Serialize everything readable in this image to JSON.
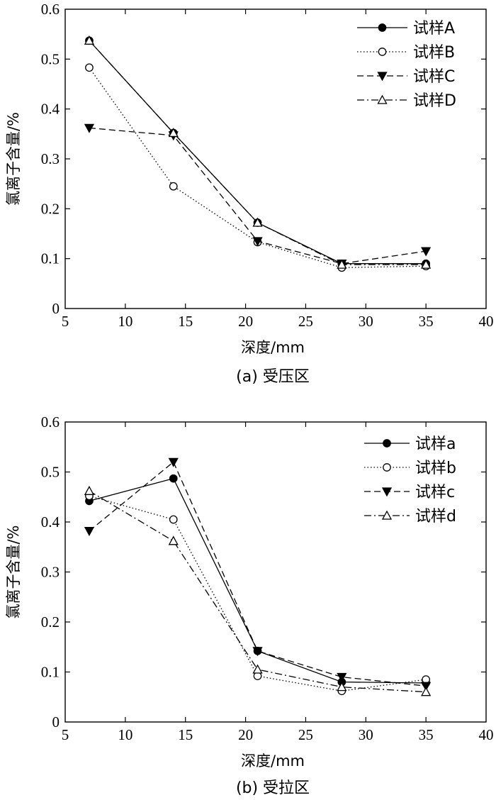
{
  "chart_data": [
    {
      "type": "line",
      "caption": "(a) 受压区",
      "xlabel": "深度/mm",
      "ylabel": "氯离子含量/%",
      "xlim": [
        5,
        40
      ],
      "ylim": [
        0,
        0.6
      ],
      "xticks": [
        5,
        10,
        15,
        20,
        25,
        30,
        35,
        40
      ],
      "yticks": [
        0,
        0.1,
        0.2,
        0.3,
        0.4,
        0.5,
        0.6
      ],
      "x": [
        7,
        14,
        21,
        28,
        35
      ],
      "legend_position": "top-right",
      "series": [
        {
          "name": "试样A",
          "values": [
            0.537,
            0.352,
            0.172,
            0.09,
            0.09
          ],
          "marker": "filled-circle",
          "line": "solid"
        },
        {
          "name": "试样B",
          "values": [
            0.483,
            0.245,
            0.133,
            0.082,
            0.085
          ],
          "marker": "open-circle",
          "line": "dotted"
        },
        {
          "name": "试样C",
          "values": [
            0.362,
            0.347,
            0.135,
            0.09,
            0.115
          ],
          "marker": "filled-triangle-down",
          "line": "dashed"
        },
        {
          "name": "试样D",
          "values": [
            0.537,
            0.352,
            0.172,
            0.088,
            0.088
          ],
          "marker": "open-triangle-up",
          "line": "dashdot"
        }
      ]
    },
    {
      "type": "line",
      "caption": "(b) 受拉区",
      "xlabel": "深度/mm",
      "ylabel": "氯离子含量/%",
      "xlim": [
        5,
        40
      ],
      "ylim": [
        0,
        0.6
      ],
      "xticks": [
        5,
        10,
        15,
        20,
        25,
        30,
        35,
        40
      ],
      "yticks": [
        0,
        0.1,
        0.2,
        0.3,
        0.4,
        0.5,
        0.6
      ],
      "x": [
        7,
        14,
        21,
        28,
        35
      ],
      "legend_position": "top-right",
      "series": [
        {
          "name": "试样a",
          "values": [
            0.442,
            0.487,
            0.142,
            0.08,
            0.078
          ],
          "marker": "filled-circle",
          "line": "solid"
        },
        {
          "name": "试样b",
          "values": [
            0.452,
            0.405,
            0.092,
            0.062,
            0.085
          ],
          "marker": "open-circle",
          "line": "dotted"
        },
        {
          "name": "试样c",
          "values": [
            0.382,
            0.52,
            0.142,
            0.09,
            0.072
          ],
          "marker": "filled-triangle-down",
          "line": "dashed"
        },
        {
          "name": "试样d",
          "values": [
            0.462,
            0.362,
            0.105,
            0.07,
            0.06
          ],
          "marker": "open-triangle-up",
          "line": "dashdot"
        }
      ]
    }
  ]
}
